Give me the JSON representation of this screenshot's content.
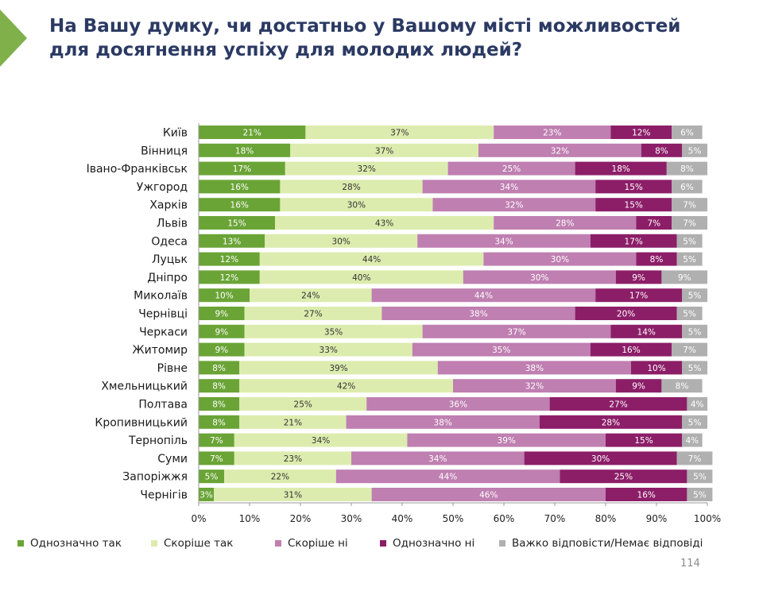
{
  "header": {
    "title_line1": "На Вашу думку, чи достатньо у Вашому місті можливостей",
    "title_line2": "для досягнення успіху для молодих людей?"
  },
  "page_number": "114",
  "chart_data": {
    "type": "bar",
    "orientation": "horizontal",
    "stacked": true,
    "percent_stacked": true,
    "categories": [
      "Київ",
      "Вінниця",
      "Івано-Франківськ",
      "Ужгород",
      "Харків",
      "Львів",
      "Одеса",
      "Луцьк",
      "Дніпро",
      "Миколаїв",
      "Чернівці",
      "Черкаси",
      "Житомир",
      "Рівне",
      "Хмельницький",
      "Полтава",
      "Кропивницький",
      "Тернопіль",
      "Суми",
      "Запоріжжя",
      "Чернігів"
    ],
    "series": [
      {
        "name": "Однозначно так",
        "color": "#6aa436",
        "label_color": "#ffffff",
        "values": [
          21,
          18,
          17,
          16,
          16,
          15,
          13,
          12,
          12,
          10,
          9,
          9,
          9,
          8,
          8,
          8,
          8,
          7,
          7,
          5,
          3
        ]
      },
      {
        "name": "Скоріше так",
        "color": "#dcecae",
        "label_color": "#333333",
        "values": [
          37,
          37,
          32,
          28,
          30,
          43,
          30,
          44,
          40,
          24,
          27,
          35,
          33,
          39,
          42,
          25,
          21,
          34,
          23,
          22,
          31
        ]
      },
      {
        "name": "Скоріше ні",
        "color": "#bf7fb1",
        "label_color": "#ffffff",
        "values": [
          23,
          32,
          25,
          34,
          32,
          28,
          34,
          30,
          30,
          44,
          38,
          37,
          35,
          38,
          32,
          36,
          38,
          39,
          34,
          44,
          46
        ]
      },
      {
        "name": "Однозначно ні",
        "color": "#8c1e68",
        "label_color": "#ffffff",
        "values": [
          12,
          8,
          18,
          15,
          15,
          7,
          17,
          8,
          9,
          17,
          20,
          14,
          16,
          10,
          9,
          27,
          28,
          15,
          30,
          25,
          16
        ]
      },
      {
        "name": "Важко відповісти/Немає відповіді",
        "color": "#b0b0b0",
        "label_color": "#ffffff",
        "values": [
          6,
          5,
          8,
          6,
          7,
          7,
          5,
          5,
          9,
          5,
          5,
          5,
          7,
          5,
          8,
          4,
          5,
          4,
          7,
          5,
          5
        ]
      }
    ],
    "xlim": [
      0,
      100
    ],
    "xticks": [
      "0%",
      "10%",
      "20%",
      "30%",
      "40%",
      "50%",
      "60%",
      "70%",
      "80%",
      "90%",
      "100%"
    ],
    "value_suffix": "%",
    "legend_position": "bottom",
    "grid": false
  }
}
